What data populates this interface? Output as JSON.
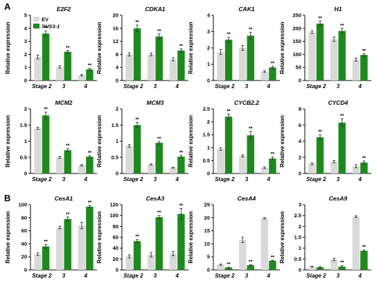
{
  "panels": [
    {
      "label": "A"
    },
    {
      "label": "B"
    }
  ],
  "colors": {
    "ev": "#d9d9d9",
    "sus": "#1e8a1e",
    "axis": "#000000",
    "error": "#333333"
  },
  "legend": {
    "entries": [
      "EV",
      "SUS3-1"
    ]
  },
  "significance_marker": "**",
  "chart_data": [
    {
      "type": "bar",
      "title": "E2F2",
      "ylabel": "Relative expression",
      "categories": [
        "Stage 2",
        "3",
        "4"
      ],
      "ylim": [
        0,
        5
      ],
      "yticks": [
        0,
        1,
        2,
        3,
        4,
        5
      ],
      "series": [
        {
          "name": "EV",
          "values": [
            1.8,
            1.05,
            0.4
          ],
          "errors": [
            0.15,
            0.1,
            0.05
          ]
        },
        {
          "name": "SUS3-1",
          "values": [
            3.6,
            2.2,
            0.85
          ],
          "errors": [
            0.2,
            0.1,
            0.08
          ],
          "marks": [
            "**",
            "**",
            "**"
          ]
        }
      ]
    },
    {
      "type": "bar",
      "title": "CDKA1",
      "ylabel": "Relative expression",
      "categories": [
        "Stage 2",
        "3",
        "4"
      ],
      "ylim": [
        0,
        20
      ],
      "yticks": [
        0,
        4,
        8,
        12,
        16,
        20
      ],
      "series": [
        {
          "name": "EV",
          "values": [
            8.0,
            8.0,
            6.5
          ],
          "errors": [
            0.5,
            0.4,
            0.5
          ]
        },
        {
          "name": "SUS3-1",
          "values": [
            16.0,
            13.5,
            9.2
          ],
          "errors": [
            1.0,
            0.8,
            0.5
          ],
          "marks": [
            "**",
            "**",
            "**"
          ]
        }
      ]
    },
    {
      "type": "bar",
      "title": "CAK1",
      "ylabel": "Relative expression",
      "categories": [
        "Stage 2",
        "3",
        "4"
      ],
      "ylim": [
        0,
        4
      ],
      "yticks": [
        0,
        1,
        2,
        3,
        4
      ],
      "series": [
        {
          "name": "EV",
          "values": [
            1.75,
            2.0,
            0.55
          ],
          "errors": [
            0.15,
            0.15,
            0.05
          ]
        },
        {
          "name": "SUS3-1",
          "values": [
            2.5,
            2.75,
            0.8
          ],
          "errors": [
            0.15,
            0.2,
            0.08
          ],
          "marks": [
            "**",
            "**",
            "**"
          ]
        }
      ]
    },
    {
      "type": "bar",
      "title": "H1",
      "ylabel": "Relative expression",
      "categories": [
        "Stage 2",
        "3",
        "4"
      ],
      "ylim": [
        0,
        250
      ],
      "yticks": [
        0,
        50,
        100,
        150,
        200,
        250
      ],
      "series": [
        {
          "name": "EV",
          "values": [
            185,
            158,
            80
          ],
          "errors": [
            5,
            8,
            6
          ]
        },
        {
          "name": "SUS3-1",
          "values": [
            218,
            190,
            98
          ],
          "errors": [
            10,
            10,
            5
          ],
          "marks": [
            "**",
            "**",
            "**"
          ]
        }
      ]
    },
    {
      "type": "bar",
      "title": "MCM2",
      "ylabel": "Relative expression",
      "categories": [
        "Stage 2",
        "3",
        "4"
      ],
      "ylim": [
        0,
        2.0
      ],
      "yticks": [
        0,
        0.5,
        1.0,
        1.5,
        2.0
      ],
      "series": [
        {
          "name": "EV",
          "values": [
            1.4,
            0.5,
            0.25
          ],
          "errors": [
            0.03,
            0.03,
            0.02
          ]
        },
        {
          "name": "SUS3-1",
          "values": [
            1.8,
            0.72,
            0.52
          ],
          "errors": [
            0.1,
            0.05,
            0.03
          ],
          "marks": [
            "**",
            "**",
            "**"
          ]
        }
      ]
    },
    {
      "type": "bar",
      "title": "MCM3",
      "ylabel": "Relative expression",
      "categories": [
        "Stage 2",
        "3",
        "4"
      ],
      "ylim": [
        0,
        2.0
      ],
      "yticks": [
        0,
        0.5,
        1.0,
        1.5,
        2.0
      ],
      "series": [
        {
          "name": "EV",
          "values": [
            0.85,
            0.28,
            0.18
          ],
          "errors": [
            0.04,
            0.02,
            0.01
          ]
        },
        {
          "name": "SUS3-1",
          "values": [
            1.5,
            0.95,
            0.52
          ],
          "errors": [
            0.08,
            0.04,
            0.04
          ],
          "marks": [
            "**",
            "**",
            "**"
          ]
        }
      ]
    },
    {
      "type": "bar",
      "title": "CYCB2.2",
      "ylabel": "Relative expression",
      "categories": [
        "Stage 2",
        "3",
        "4"
      ],
      "ylim": [
        0,
        2.5
      ],
      "yticks": [
        0,
        0.5,
        1.0,
        1.5,
        2.0,
        2.5
      ],
      "series": [
        {
          "name": "EV",
          "values": [
            0.95,
            0.68,
            0.22
          ],
          "errors": [
            0.05,
            0.04,
            0.03
          ]
        },
        {
          "name": "SUS3-1",
          "values": [
            2.2,
            1.48,
            0.58
          ],
          "errors": [
            0.1,
            0.15,
            0.06
          ],
          "marks": [
            "**",
            "**",
            "**"
          ]
        }
      ]
    },
    {
      "type": "bar",
      "title": "CYCD4",
      "ylabel": "Relative expression",
      "categories": [
        "Stage 2",
        "3",
        "4"
      ],
      "ylim": [
        0,
        8
      ],
      "yticks": [
        0,
        2,
        4,
        6,
        8
      ],
      "series": [
        {
          "name": "EV",
          "values": [
            1.2,
            1.45,
            0.9
          ],
          "errors": [
            0.1,
            0.15,
            0.2
          ]
        },
        {
          "name": "SUS3-1",
          "values": [
            4.5,
            6.3,
            1.35
          ],
          "errors": [
            0.3,
            0.5,
            0.2
          ],
          "marks": [
            "**",
            "**",
            "**"
          ]
        }
      ]
    },
    {
      "type": "bar",
      "title": "CesA1",
      "ylabel": "Relative expression",
      "categories": [
        "Stage 2",
        "3",
        "4"
      ],
      "ylim": [
        0,
        100
      ],
      "yticks": [
        0,
        20,
        40,
        60,
        80,
        100
      ],
      "series": [
        {
          "name": "EV",
          "values": [
            24,
            65,
            68
          ],
          "errors": [
            2,
            2,
            5
          ]
        },
        {
          "name": "SUS3-1",
          "values": [
            36,
            78,
            97
          ],
          "errors": [
            3,
            3,
            2
          ],
          "marks": [
            "**",
            "**",
            "**"
          ]
        }
      ]
    },
    {
      "type": "bar",
      "title": "CesA3",
      "ylabel": "Relative expression",
      "categories": [
        "Stage 2",
        "3",
        "4"
      ],
      "ylim": [
        0,
        120
      ],
      "yticks": [
        0,
        20,
        40,
        60,
        80,
        100,
        120
      ],
      "series": [
        {
          "name": "EV",
          "values": [
            25,
            28,
            30
          ],
          "errors": [
            3,
            4,
            4
          ]
        },
        {
          "name": "SUS3-1",
          "values": [
            53,
            97,
            103
          ],
          "errors": [
            3,
            3,
            10
          ],
          "marks": [
            "**",
            "**",
            "**"
          ]
        }
      ]
    },
    {
      "type": "bar",
      "title": "CesA4",
      "ylabel": "Relative expression",
      "categories": [
        "Stage 2",
        "3",
        "4"
      ],
      "ylim": [
        0,
        25
      ],
      "yticks": [
        0,
        5,
        10,
        15,
        20,
        25
      ],
      "series": [
        {
          "name": "EV",
          "values": [
            2.0,
            11.5,
            19.8
          ],
          "errors": [
            0.2,
            1.0,
            0.2
          ]
        },
        {
          "name": "SUS3-1",
          "values": [
            0.9,
            1.8,
            3.5
          ],
          "errors": [
            0.1,
            0.2,
            0.2
          ],
          "marks": [
            "**",
            "**",
            "**"
          ]
        }
      ]
    },
    {
      "type": "bar",
      "title": "CesA9",
      "ylabel": "Relative expression",
      "categories": [
        "Stage 2",
        "3",
        "4"
      ],
      "ylim": [
        0,
        3.0
      ],
      "yticks": [
        0,
        0.5,
        1.0,
        1.5,
        2.0,
        2.5,
        3.0
      ],
      "series": [
        {
          "name": "EV",
          "values": [
            0.15,
            0.48,
            2.45
          ],
          "errors": [
            0.02,
            0.06,
            0.04
          ]
        },
        {
          "name": "SUS3-1",
          "values": [
            0.12,
            0.15,
            0.88
          ],
          "errors": [
            0.03,
            0.05,
            0.04
          ],
          "marks": [
            "",
            "**",
            "**"
          ]
        }
      ]
    }
  ]
}
